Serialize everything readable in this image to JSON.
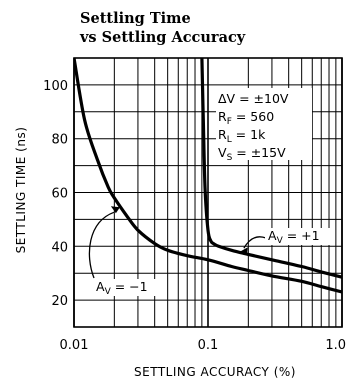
{
  "chart_data": {
    "type": "line",
    "title_lines": [
      "Settling Time",
      "vs Settling Accuracy"
    ],
    "xlabel": "SETTLING ACCURACY (%)",
    "ylabel": "SETTLING TIME (ns)",
    "x_scale": "log",
    "xlim": [
      0.01,
      1.0
    ],
    "ylim": [
      10,
      110
    ],
    "x_tick_labels": [
      "0.01",
      "0.1",
      "1.0"
    ],
    "x_tick_values": [
      0.01,
      0.1,
      1.0
    ],
    "y_tick_labels": [
      "20",
      "40",
      "60",
      "80",
      "100"
    ],
    "y_tick_values": [
      20,
      40,
      60,
      80,
      100
    ],
    "grid": true,
    "conditions": [
      {
        "main": "ΔV = ±10V",
        "sym": "ΔV",
        "sub": "",
        "rest": " = ±10V"
      },
      {
        "main": "RF = 560",
        "sym": "R",
        "sub": "F",
        "rest": " = 560"
      },
      {
        "main": "RL = 1k",
        "sym": "R",
        "sub": "L",
        "rest": " = 1k"
      },
      {
        "main": "VS = ±15V",
        "sym": "V",
        "sub": "S",
        "rest": " = ±15V"
      }
    ],
    "series": [
      {
        "label": "AV = −1",
        "label_main": "A",
        "label_sub": "V",
        "label_rest": " = −1",
        "x": [
          0.01,
          0.012,
          0.015,
          0.018,
          0.02,
          0.025,
          0.03,
          0.04,
          0.05,
          0.07,
          0.1,
          0.15,
          0.2,
          0.3,
          0.5,
          0.7,
          1.0
        ],
        "y": [
          110,
          87,
          72,
          62,
          58,
          51,
          46,
          41,
          38.5,
          36.5,
          35,
          32.5,
          31,
          29,
          27,
          25,
          23
        ]
      },
      {
        "label": "AV = +1",
        "label_main": "A",
        "label_sub": "V",
        "label_rest": " = +1",
        "x": [
          0.09,
          0.092,
          0.095,
          0.1,
          0.105,
          0.11,
          0.12,
          0.15,
          0.2,
          0.3,
          0.5,
          0.7,
          1.0
        ],
        "y": [
          110,
          90,
          62,
          46,
          42,
          41,
          40,
          38.5,
          37,
          35,
          32.5,
          30.5,
          28.5
        ]
      }
    ]
  }
}
